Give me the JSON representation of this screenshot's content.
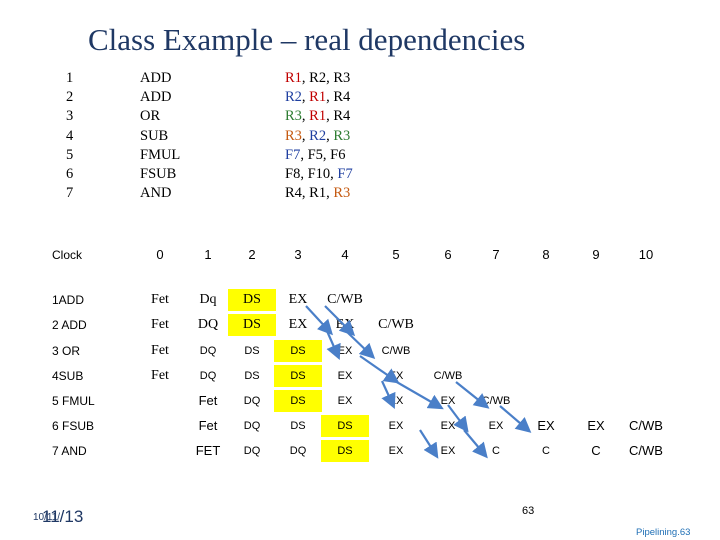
{
  "title": "Class Example – real dependencies",
  "instructions": [
    {
      "num": "1",
      "op": "ADD",
      "regs": [
        {
          "t": "R1",
          "c": "#c00000"
        },
        {
          "t": ", R2, R3",
          "c": "#000000"
        }
      ]
    },
    {
      "num": "2",
      "op": "ADD",
      "regs": [
        {
          "t": "R2",
          "c": "#1f3fa0"
        },
        {
          "t": ", ",
          "c": "#000000"
        },
        {
          "t": "R1",
          "c": "#c00000"
        },
        {
          "t": ", R4",
          "c": "#000000"
        }
      ]
    },
    {
      "num": "3",
      "op": "OR",
      "regs": [
        {
          "t": "R3",
          "c": "#2e7d32"
        },
        {
          "t": ", ",
          "c": "#000000"
        },
        {
          "t": "R1",
          "c": "#c00000"
        },
        {
          "t": ", R4",
          "c": "#000000"
        }
      ]
    },
    {
      "num": "4",
      "op": "SUB",
      "regs": [
        {
          "t": "R3",
          "c": "#c55a11"
        },
        {
          "t": ", ",
          "c": "#000000"
        },
        {
          "t": "R2",
          "c": "#1f3fa0"
        },
        {
          "t": ", ",
          "c": "#000000"
        },
        {
          "t": "R3",
          "c": "#2e7d32"
        }
      ]
    },
    {
      "num": "5",
      "op": "FMUL",
      "regs": [
        {
          "t": "F7",
          "c": "#1f3fa0"
        },
        {
          "t": ", F5, F6",
          "c": "#000000"
        }
      ]
    },
    {
      "num": "6",
      "op": "FSUB",
      "regs": [
        {
          "t": "F8, F10, ",
          "c": "#000000"
        },
        {
          "t": "F7",
          "c": "#1f3fa0"
        }
      ]
    },
    {
      "num": "7",
      "op": "AND",
      "regs": [
        {
          "t": "R4, R1, ",
          "c": "#000000"
        },
        {
          "t": "R3",
          "c": "#c55a11"
        }
      ]
    }
  ],
  "table": {
    "header_label": "Clock",
    "clock": [
      "0",
      "1",
      "2",
      "3",
      "4",
      "5",
      "6",
      "7",
      "8",
      "9",
      "10"
    ],
    "rows": [
      {
        "label": "1ADD",
        "cells": [
          {
            "c": 0,
            "t": "Fet",
            "s": 1
          },
          {
            "c": 1,
            "t": "Dq",
            "s": 1
          },
          {
            "c": 2,
            "t": "DS",
            "s": 1,
            "hl": 1
          },
          {
            "c": 3,
            "t": "EX",
            "s": 1
          },
          {
            "c": 4,
            "t": "C/WB",
            "s": 1
          }
        ]
      },
      {
        "label": "2 ADD",
        "cells": [
          {
            "c": 0,
            "t": "Fet",
            "s": 1
          },
          {
            "c": 1,
            "t": "DQ",
            "s": 1
          },
          {
            "c": 2,
            "t": "DS",
            "s": 1,
            "hl": 1
          },
          {
            "c": 3,
            "t": "EX",
            "s": 1
          },
          {
            "c": 4,
            "t": "EX",
            "s": 1
          },
          {
            "c": 5,
            "t": "C/WB",
            "s": 1
          }
        ]
      },
      {
        "label": "3 OR",
        "cells": [
          {
            "c": 0,
            "t": "Fet",
            "s": 1
          },
          {
            "c": 1,
            "t": "DQ",
            "n": 1
          },
          {
            "c": 2,
            "t": "DS",
            "n": 1
          },
          {
            "c": 3,
            "t": "DS",
            "n": 1,
            "hl": 1
          },
          {
            "c": 4,
            "t": "EX",
            "n": 1
          },
          {
            "c": 5,
            "t": "C/WB",
            "n": 1
          }
        ]
      },
      {
        "label": "4SUB",
        "cells": [
          {
            "c": 0,
            "t": "Fet",
            "s": 1
          },
          {
            "c": 1,
            "t": "DQ",
            "n": 1
          },
          {
            "c": 2,
            "t": "DS",
            "n": 1
          },
          {
            "c": 3,
            "t": "DS",
            "n": 1,
            "hl": 1
          },
          {
            "c": 4,
            "t": "EX",
            "n": 1
          },
          {
            "c": 5,
            "t": "EX",
            "n": 1
          },
          {
            "c": 6,
            "t": "C/WB",
            "n": 1
          }
        ]
      },
      {
        "label": "5 FMUL",
        "cells": [
          {
            "c": 1,
            "t": "Fet"
          },
          {
            "c": 2,
            "t": "DQ",
            "n": 1
          },
          {
            "c": 3,
            "t": "DS",
            "n": 1,
            "hl": 1
          },
          {
            "c": 4,
            "t": "EX",
            "n": 1
          },
          {
            "c": 5,
            "t": "EX",
            "n": 1
          },
          {
            "c": 6,
            "t": "EX",
            "n": 1
          },
          {
            "c": 7,
            "t": "C/WB",
            "n": 1
          }
        ]
      },
      {
        "label": "6 FSUB",
        "cells": [
          {
            "c": 1,
            "t": "Fet"
          },
          {
            "c": 2,
            "t": "DQ",
            "n": 1
          },
          {
            "c": 3,
            "t": "DS",
            "n": 1
          },
          {
            "c": 4,
            "t": "DS",
            "n": 1,
            "hl": 1
          },
          {
            "c": 5,
            "t": "EX",
            "n": 1
          },
          {
            "c": 6,
            "t": "EX",
            "n": 1
          },
          {
            "c": 7,
            "t": "EX",
            "n": 1
          },
          {
            "c": 8,
            "t": "EX"
          },
          {
            "c": 9,
            "t": "EX"
          },
          {
            "c": 10,
            "t": "C/WB"
          }
        ]
      },
      {
        "label": "7 AND",
        "cells": [
          {
            "c": 1,
            "t": "FET"
          },
          {
            "c": 2,
            "t": "DQ",
            "n": 1
          },
          {
            "c": 3,
            "t": "DQ",
            "n": 1
          },
          {
            "c": 4,
            "t": "DS",
            "n": 1,
            "hl": 1
          },
          {
            "c": 5,
            "t": "EX",
            "n": 1
          },
          {
            "c": 6,
            "t": "EX",
            "n": 1
          },
          {
            "c": 7,
            "t": "C",
            "n": 1
          },
          {
            "c": 8,
            "t": "C",
            "n": 1
          },
          {
            "c": 9,
            "t": "C"
          },
          {
            "c": 10,
            "t": "C/WB"
          }
        ]
      }
    ]
  },
  "colors": {
    "highlight": "#ffff00",
    "title": "#1f3864",
    "arrow": "#4a7fc8",
    "accent_blue": "#1f3fa0",
    "accent_red": "#c00000"
  },
  "footer": {
    "date_big": "11/13",
    "date_small": "10/11/",
    "page_number": "63",
    "slide_label": "Pipelining.63"
  }
}
